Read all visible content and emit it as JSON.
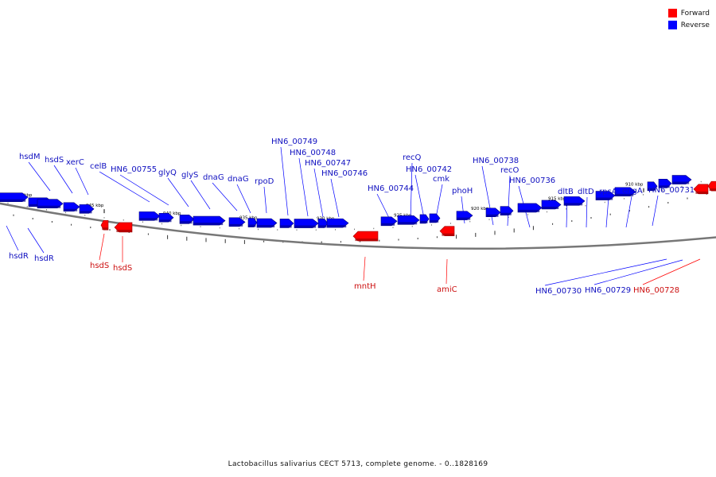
{
  "legend": {
    "forward_label": "Forward",
    "reverse_label": "Reverse",
    "forward_color": "#ff0000",
    "reverse_color": "#0000ff"
  },
  "caption": "Lactobacillus salivarius CECT 5713, complete genome. - 0..1828169",
  "tick_labels": [
    "950 kbp",
    "945 kbp",
    "940 kbp",
    "935 kbp",
    "930 kbp",
    "925 kbp",
    "920 kbp",
    "915 kbp",
    "910 kbp"
  ],
  "genes_reverse": [
    {
      "label": "hsdM"
    },
    {
      "label": "hsdS"
    },
    {
      "label": "xerC"
    },
    {
      "label": "celB"
    },
    {
      "label": "HN6_00755"
    },
    {
      "label": "glyQ"
    },
    {
      "label": "glyS"
    },
    {
      "label": "dnaG"
    },
    {
      "label": "dnaG"
    },
    {
      "label": "rpoD"
    },
    {
      "label": "HN6_00749"
    },
    {
      "label": "HN6_00748"
    },
    {
      "label": "HN6_00747"
    },
    {
      "label": "HN6_00746"
    },
    {
      "label": "HN6_00744"
    },
    {
      "label": "recQ"
    },
    {
      "label": "HN6_00742"
    },
    {
      "label": "cmk"
    },
    {
      "label": "phoH"
    },
    {
      "label": "HN6_00738"
    },
    {
      "label": "recO"
    },
    {
      "label": "HN6_00736"
    },
    {
      "label": "dltB"
    },
    {
      "label": "dltD"
    },
    {
      "label": "rpsA"
    },
    {
      "label": "engA"
    },
    {
      "label": "HN6_00731"
    },
    {
      "label": "hsdR"
    },
    {
      "label": "hsdR"
    },
    {
      "label": "HN6_00730"
    },
    {
      "label": "HN6_00729"
    }
  ],
  "genes_forward": [
    {
      "label": "hsdS"
    },
    {
      "label": "hsdS"
    },
    {
      "label": "mntH"
    },
    {
      "label": "amiC"
    },
    {
      "label": "HN6_00728"
    }
  ]
}
